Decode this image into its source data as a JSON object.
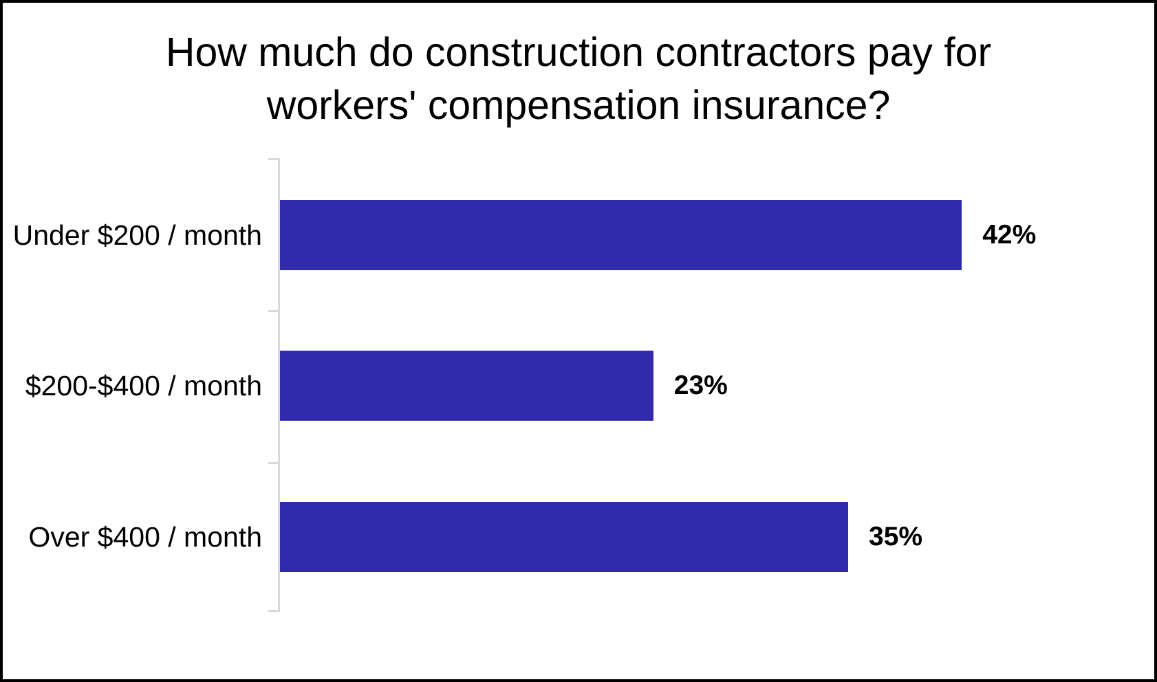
{
  "frame": {
    "background": "#FFFFFF",
    "border_color": "#000000"
  },
  "chart_data": {
    "type": "bar",
    "orientation": "horizontal",
    "title": "How much do construction contractors pay for workers' compensation insurance?",
    "title_lines": [
      "How much do construction contractors pay for",
      "workers' compensation insurance?"
    ],
    "categories": [
      "Under $200 / month",
      "$200-$400 / month",
      "Over $400 / month"
    ],
    "values": [
      42,
      23,
      35
    ],
    "data_labels": [
      "42%",
      "23%",
      "35%"
    ],
    "unit": "%",
    "xlabel": "",
    "ylabel": "",
    "grid": false,
    "legend": false,
    "value_axis_visible": false,
    "bar_color": "#322AAD",
    "axis_line_color": "#D9D9D9",
    "text_color": "#000000"
  }
}
